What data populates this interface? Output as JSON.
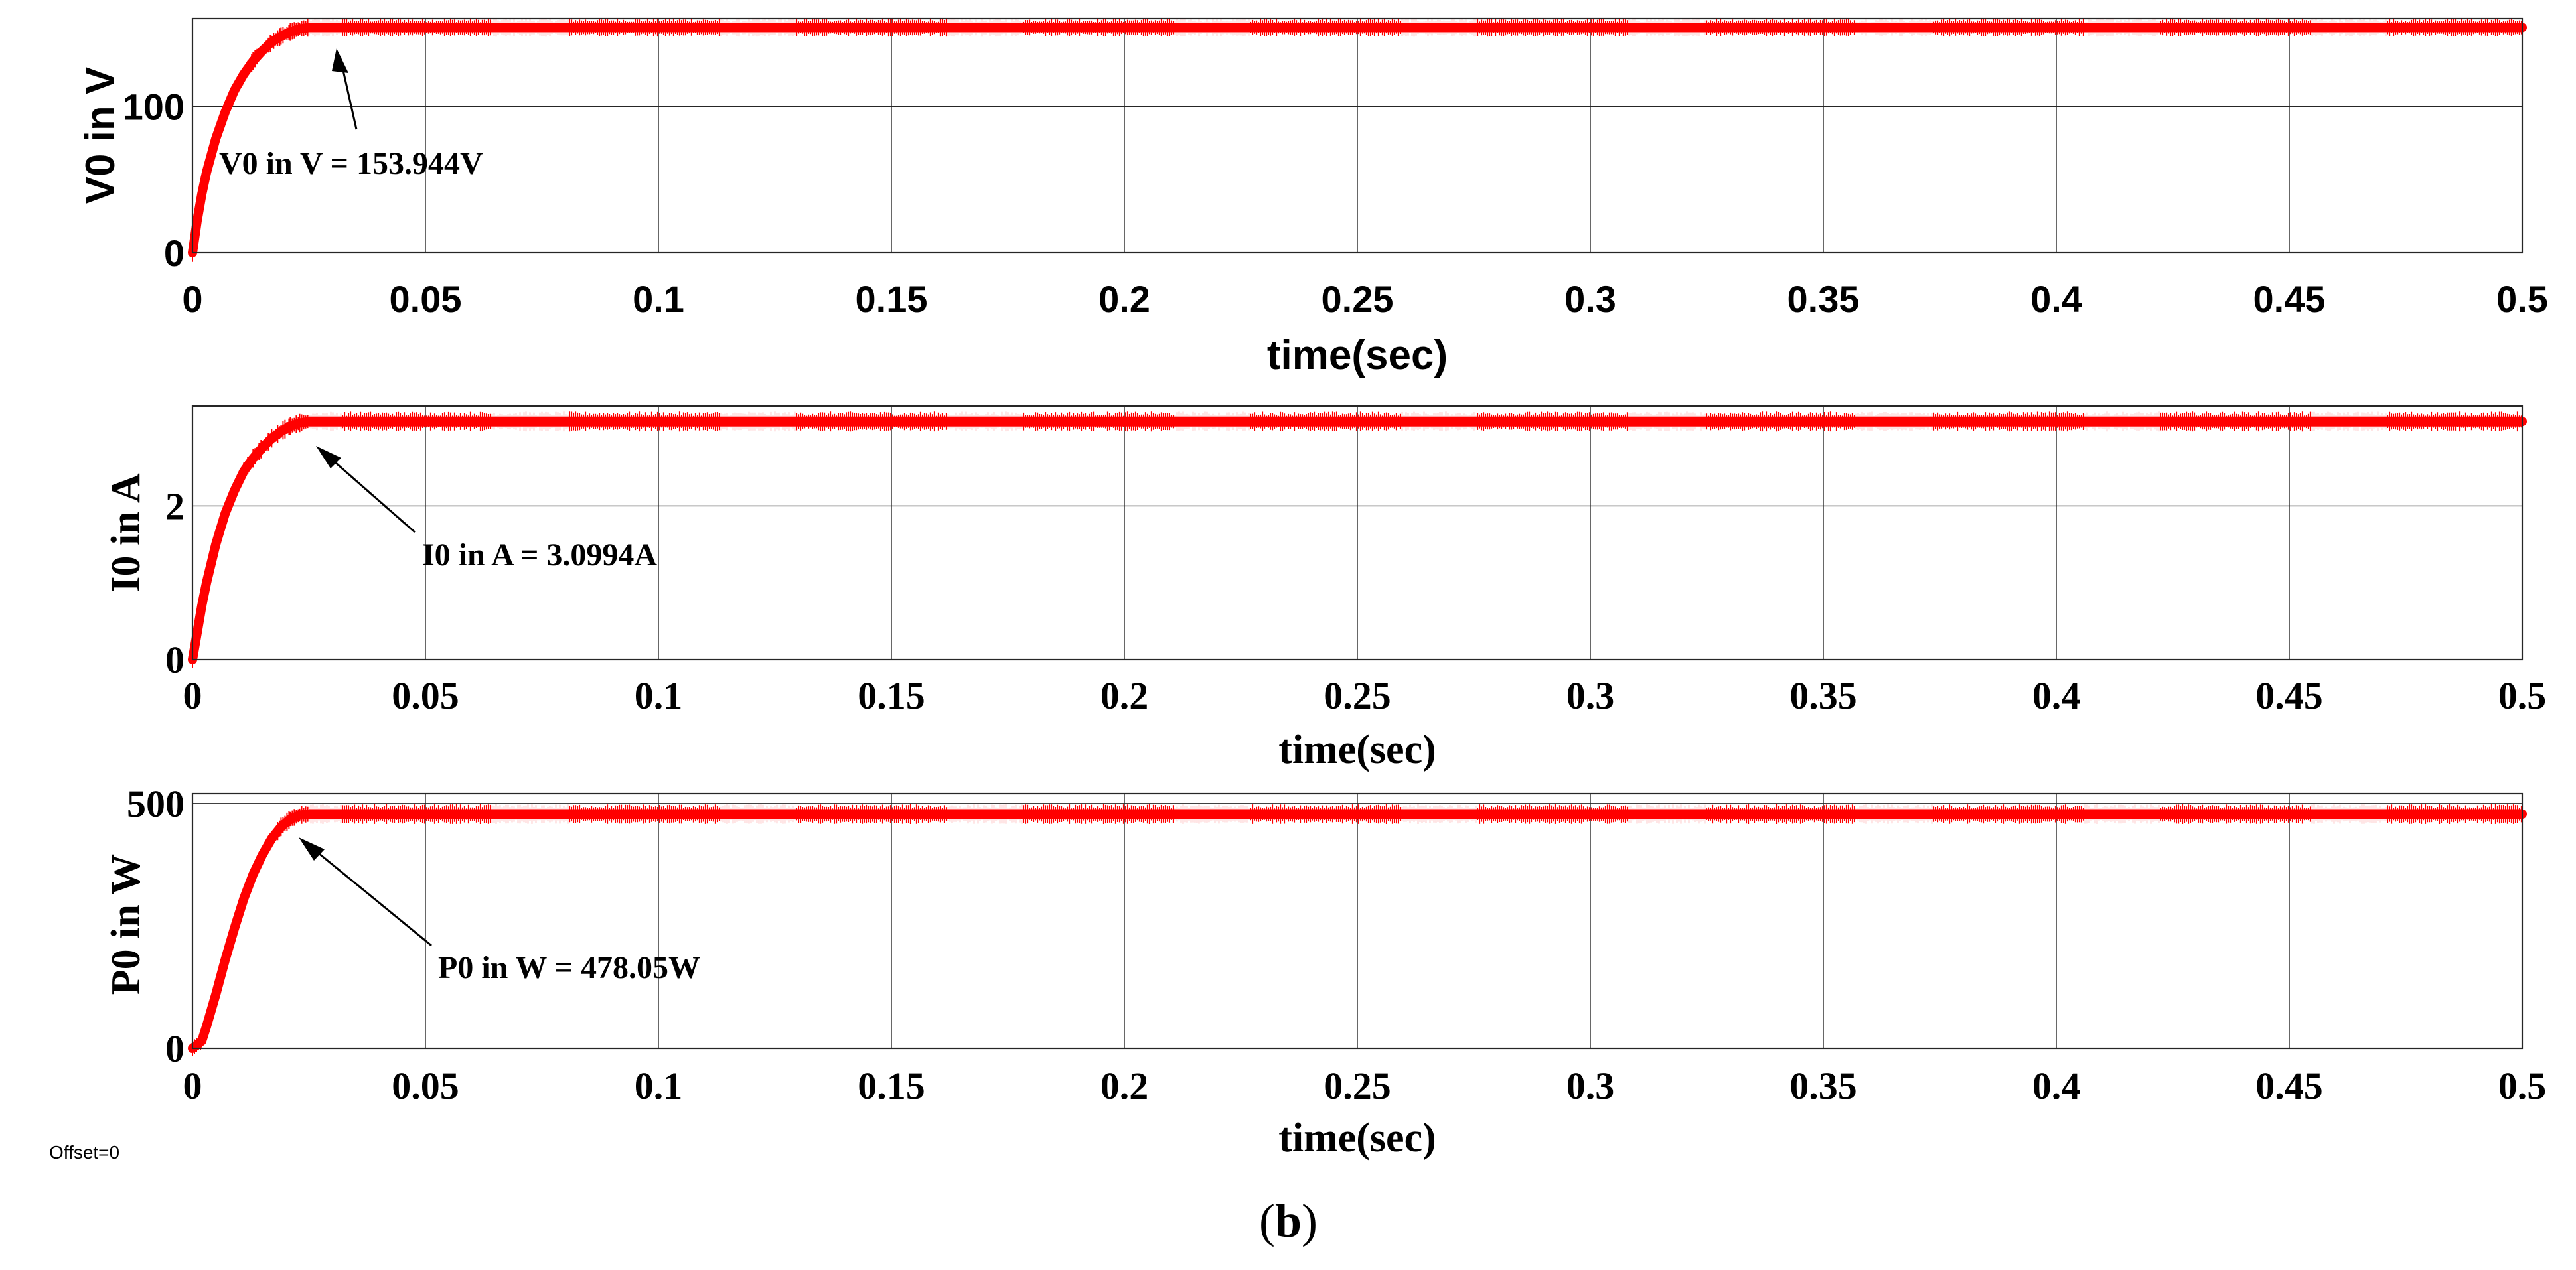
{
  "figure": {
    "offset_label": "Offset=0",
    "caption_prefix": "(",
    "caption_letter": "b",
    "caption_suffix": ")"
  },
  "colors": {
    "signal": "#ff0000",
    "grid": "#262626",
    "background": "#ffffff"
  },
  "chart_data": [
    {
      "type": "line",
      "xlabel": "time(sec)",
      "ylabel": "V0 in V",
      "xlim": [
        0,
        0.5
      ],
      "ylim": [
        0,
        160
      ],
      "xticks": [
        "0",
        "0.05",
        "0.1",
        "0.15",
        "0.2",
        "0.25",
        "0.3",
        "0.35",
        "0.4",
        "0.45",
        "0.5"
      ],
      "yticks": [
        "0",
        "100"
      ],
      "grid": true,
      "series": [
        {
          "x": [
            0,
            0.001,
            0.002,
            0.003,
            0.005,
            0.007,
            0.009,
            0.011,
            0.013,
            0.015,
            0.017,
            0.019,
            0.021,
            0.023,
            0.025,
            0.027,
            0.03,
            0.05,
            0.1,
            0.15,
            0.2,
            0.25,
            0.3,
            0.35,
            0.4,
            0.45,
            0.5
          ],
          "y": [
            0,
            22,
            40,
            55,
            78,
            96,
            111,
            122,
            131,
            138,
            144,
            148,
            151,
            153,
            153.944,
            153.944,
            153.944,
            153.944,
            153.944,
            153.944,
            153.944,
            153.944,
            153.944,
            153.944,
            153.944,
            153.944,
            153.944
          ]
        }
      ],
      "annotation": {
        "text": "V0 in V = 153.944V",
        "x": 0.025,
        "y": 153.944
      }
    },
    {
      "type": "line",
      "xlabel": "time(sec)",
      "ylabel": "I0 in A",
      "xlim": [
        0,
        0.5
      ],
      "ylim": [
        0,
        3.3
      ],
      "xticks": [
        "0",
        "0.05",
        "0.1",
        "0.15",
        "0.2",
        "0.25",
        "0.3",
        "0.35",
        "0.4",
        "0.45",
        "0.5"
      ],
      "yticks": [
        "0",
        "2"
      ],
      "grid": true,
      "series": [
        {
          "x": [
            0,
            0.001,
            0.002,
            0.003,
            0.005,
            0.007,
            0.009,
            0.011,
            0.013,
            0.015,
            0.017,
            0.019,
            0.021,
            0.023,
            0.025,
            0.03,
            0.05,
            0.1,
            0.15,
            0.2,
            0.25,
            0.3,
            0.35,
            0.4,
            0.45,
            0.5
          ],
          "y": [
            0,
            0.35,
            0.7,
            1.0,
            1.5,
            1.9,
            2.2,
            2.45,
            2.62,
            2.76,
            2.88,
            2.97,
            3.04,
            3.08,
            3.0994,
            3.0994,
            3.0994,
            3.0994,
            3.0994,
            3.0994,
            3.0994,
            3.0994,
            3.0994,
            3.0994,
            3.0994,
            3.0994
          ]
        }
      ],
      "annotation": {
        "text": "I0 in A = 3.0994A",
        "x": 0.025,
        "y": 3.0994
      }
    },
    {
      "type": "line",
      "xlabel": "time(sec)",
      "ylabel": "P0 in W",
      "xlim": [
        0,
        0.5
      ],
      "ylim": [
        0,
        520
      ],
      "xticks": [
        "0",
        "0.05",
        "0.1",
        "0.15",
        "0.2",
        "0.25",
        "0.3",
        "0.35",
        "0.4",
        "0.45",
        "0.5"
      ],
      "yticks": [
        "0",
        "500"
      ],
      "grid": true,
      "series": [
        {
          "x": [
            0,
            0.002,
            0.003,
            0.005,
            0.007,
            0.009,
            0.011,
            0.013,
            0.015,
            0.017,
            0.019,
            0.021,
            0.023,
            0.025,
            0.03,
            0.05,
            0.1,
            0.15,
            0.2,
            0.25,
            0.3,
            0.35,
            0.4,
            0.45,
            0.5
          ],
          "y": [
            0,
            15,
            45,
            110,
            180,
            245,
            305,
            355,
            395,
            428,
            452,
            468,
            476,
            478.05,
            478.05,
            478.05,
            478.05,
            478.05,
            478.05,
            478.05,
            478.05,
            478.05,
            478.05,
            478.05,
            478.05
          ]
        }
      ],
      "annotation": {
        "text": "P0 in W = 478.05W",
        "x": 0.025,
        "y": 478.05
      }
    }
  ]
}
